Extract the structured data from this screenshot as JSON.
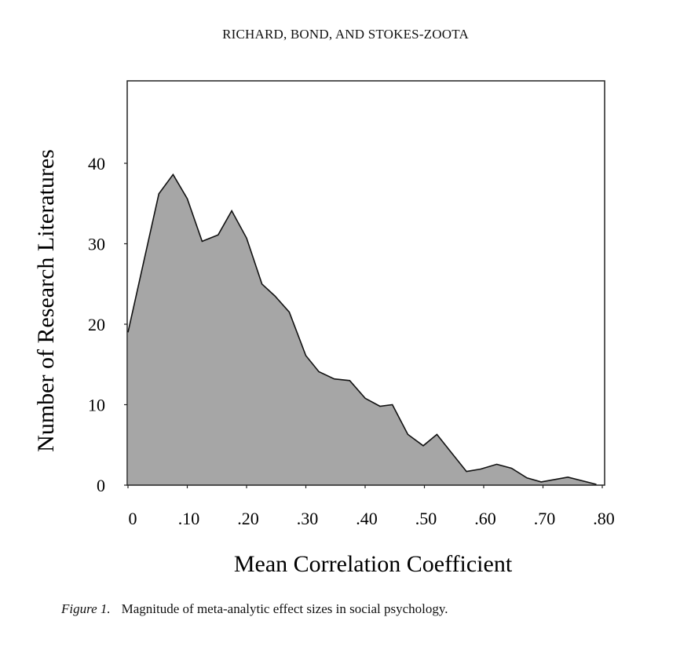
{
  "header": "RICHARD, BOND, AND STOKES-ZOOTA",
  "caption": {
    "label": "Figure 1.",
    "text": "Magnitude of meta-analytic effect sizes in social psychology."
  },
  "chart_data": {
    "type": "area",
    "title": "",
    "xlabel": "Mean Correlation Coefficient",
    "ylabel": "Number of Research Literatures",
    "xlim": [
      0,
      0.8
    ],
    "ylim": [
      0,
      50
    ],
    "xticks": [
      0,
      0.1,
      0.2,
      0.3,
      0.4,
      0.5,
      0.6,
      0.7,
      0.8
    ],
    "xtick_labels": [
      "0",
      ".10",
      ".20",
      ".30",
      ".40",
      ".50",
      ".60",
      ".70",
      ".80"
    ],
    "yticks": [
      0,
      10,
      20,
      30,
      40
    ],
    "ytick_labels": [
      "0",
      "10",
      "20",
      "30",
      "40"
    ],
    "grid": false,
    "fill_color": "#a6a6a6",
    "x": [
      0,
      0.052,
      0.076,
      0.1,
      0.125,
      0.152,
      0.175,
      0.2,
      0.226,
      0.248,
      0.272,
      0.3,
      0.322,
      0.348,
      0.374,
      0.4,
      0.425,
      0.446,
      0.472,
      0.498,
      0.521,
      0.546,
      0.571,
      0.595,
      0.622,
      0.647,
      0.673,
      0.697,
      0.72,
      0.742,
      0.79
    ],
    "y": [
      19.0,
      36.2,
      38.6,
      35.6,
      30.3,
      31.1,
      34.1,
      30.7,
      25.0,
      23.5,
      21.5,
      16.1,
      14.1,
      13.2,
      13.0,
      10.8,
      9.8,
      10.0,
      6.3,
      4.9,
      6.3,
      4.0,
      1.7,
      2.0,
      2.6,
      2.1,
      0.9,
      0.4,
      0.7,
      1.0,
      0.1
    ]
  }
}
